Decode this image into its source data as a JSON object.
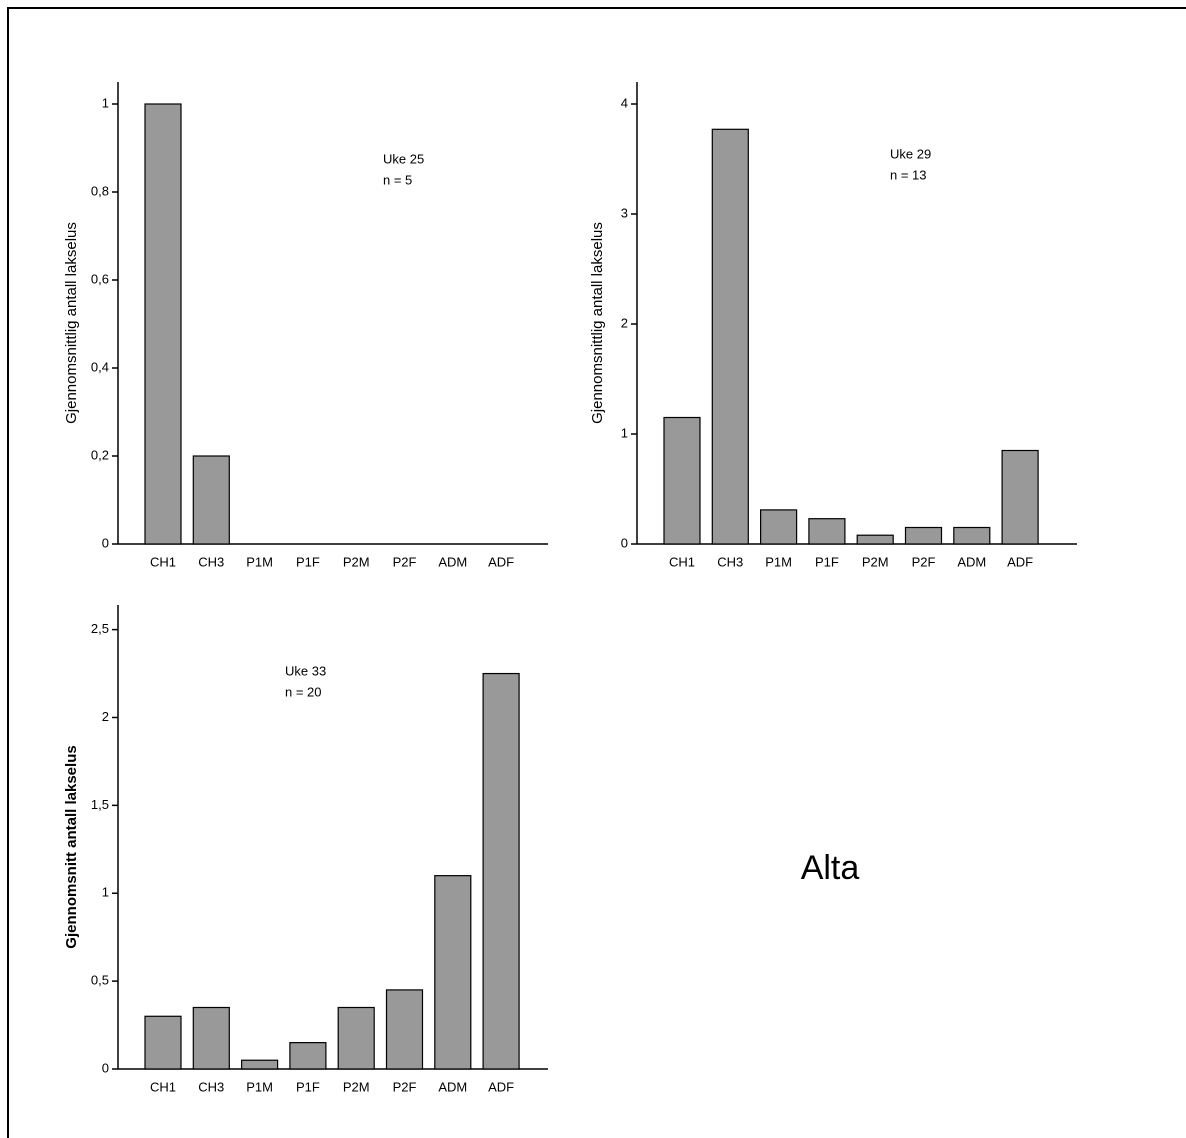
{
  "label": "Alta",
  "chart_data": [
    {
      "type": "bar",
      "y_label": "Gjennomsnittlig antall lakselus",
      "annotation": [
        "Uke 25",
        "n = 5"
      ],
      "categories": [
        "CH1",
        "CH3",
        "P1M",
        "P1F",
        "P2M",
        "P2F",
        "ADM",
        "ADF"
      ],
      "values": [
        1,
        0.2,
        0,
        0,
        0,
        0,
        0,
        0
      ],
      "color": "#999999",
      "ylim": [
        0,
        1.05
      ],
      "yticks": [
        0,
        {
          "value": 0.2,
          "label": "0,2"
        },
        {
          "value": 0.4,
          "label": "0,4"
        },
        {
          "value": 0.6,
          "label": "0,6"
        },
        {
          "value": 0.8,
          "label": "0,8"
        },
        1
      ]
    },
    {
      "type": "bar",
      "y_label": "Gjennomsnittlig antall lakselus",
      "annotation": [
        "Uke 29",
        "n = 13"
      ],
      "categories": [
        "CH1",
        "CH3",
        "P1M",
        "P1F",
        "P2M",
        "P2F",
        "ADM",
        "ADF"
      ],
      "values": [
        1.15,
        3.77,
        0.31,
        0.23,
        0.08,
        0.15,
        0.15,
        0.85
      ],
      "color": "#999999",
      "ylim": [
        0,
        4.2
      ],
      "yticks": [
        0,
        1,
        2,
        3,
        4
      ]
    },
    {
      "type": "bar",
      "y_label": "Gjennomsnitt antall lakselus",
      "annotation": [
        "Uke 33",
        "n = 20"
      ],
      "categories": [
        "CH1",
        "CH3",
        "P1M",
        "P1F",
        "P2M",
        "P2F",
        "ADM",
        "ADF"
      ],
      "values": [
        0.3,
        0.35,
        0.05,
        0.15,
        0.35,
        0.45,
        1.1,
        2.25
      ],
      "color": "#999999",
      "ylim": [
        0,
        2.64
      ],
      "yticks": [
        0,
        {
          "value": 0.5,
          "label": "0,5"
        },
        1,
        {
          "value": 1.5,
          "label": "1,5"
        },
        2,
        {
          "value": 2.5,
          "label": "2,5"
        }
      ]
    }
  ]
}
